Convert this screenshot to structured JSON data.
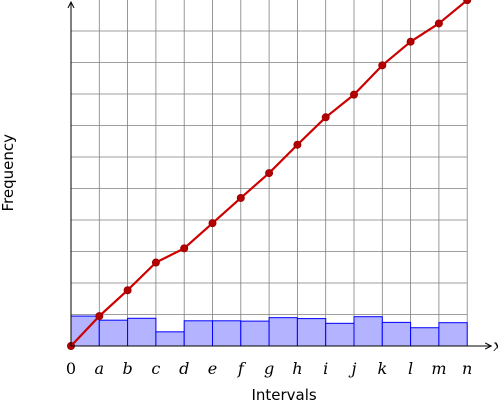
{
  "chart_data": {
    "type": "bar",
    "xlabel": "Intervals",
    "ylabel": "Frequency",
    "axis_variable": "x",
    "categories": [
      "a",
      "b",
      "c",
      "d",
      "e",
      "f",
      "g",
      "h",
      "i",
      "j",
      "k",
      "l",
      "m",
      "n"
    ],
    "origin_label": "0",
    "ylim": [
      0,
      11
    ],
    "grid": true,
    "series": [
      {
        "type": "bar",
        "color": "#b3b3ff",
        "edge_color": "#0000ff",
        "values": [
          0.95,
          0.82,
          0.88,
          0.45,
          0.8,
          0.8,
          0.79,
          0.9,
          0.87,
          0.72,
          0.93,
          0.75,
          0.58,
          0.74
        ]
      },
      {
        "type": "line",
        "color": "#cc0000",
        "x": [
          0,
          1,
          2,
          3,
          4,
          5,
          6,
          7,
          8,
          9,
          10,
          11,
          12,
          13,
          14
        ],
        "values": [
          0,
          0.95,
          1.77,
          2.65,
          3.1,
          3.9,
          4.7,
          5.49,
          6.39,
          7.26,
          7.98,
          8.91,
          9.66,
          10.24,
          10.98
        ]
      }
    ]
  }
}
